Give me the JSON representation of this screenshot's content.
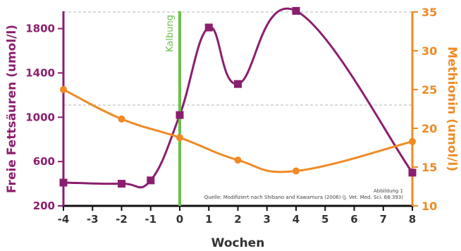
{
  "chart_data": {
    "type": "line",
    "title": "",
    "x": [
      -4,
      -2,
      -1,
      0,
      1,
      2,
      4,
      8
    ],
    "xlabel": "Wochen",
    "xlim": [
      -4,
      8
    ],
    "xticks": [
      "-4",
      "-3",
      "-2",
      "-1",
      "0",
      "1",
      "2",
      "3",
      "4",
      "5",
      "6",
      "7",
      "8"
    ],
    "y_left": {
      "label": "Freie Fettsäuren (umol/l)",
      "range": [
        200,
        1950
      ],
      "ticks": [
        "200",
        "600",
        "1000",
        "1400",
        "1800"
      ],
      "color": "#8b1e6e"
    },
    "y_right": {
      "label": "Methionin (umol/l)",
      "range": [
        10,
        35
      ],
      "ticks": [
        "10",
        "15",
        "20",
        "25",
        "30",
        "35"
      ],
      "color": "#f08a24"
    },
    "series": [
      {
        "axis": "left",
        "color": "#8b1e6e",
        "marker": "square",
        "x": [
          -4,
          -2,
          -1,
          0,
          1,
          2,
          4,
          8
        ],
        "values": [
          410,
          400,
          430,
          1020,
          1810,
          1300,
          1960,
          500
        ]
      },
      {
        "axis": "right",
        "color": "#f08a24",
        "marker": "circle",
        "x": [
          -4,
          -2,
          0,
          2,
          4,
          8
        ],
        "values": [
          25.0,
          21.2,
          18.8,
          15.9,
          14.5,
          18.3
        ]
      }
    ],
    "reference_line": {
      "x": 0,
      "label": "Kalbung",
      "color": "#6cc04a"
    },
    "annotation": {
      "line1": "Abbildung 1",
      "line2": "Quelle: Modifiziert nach Shibano and Kawamura (2006) (J. Vet. Med. Sci. 68:393)"
    },
    "grid": "dashed horizontal at 35 and 23 (right axis)",
    "legend": "none"
  }
}
